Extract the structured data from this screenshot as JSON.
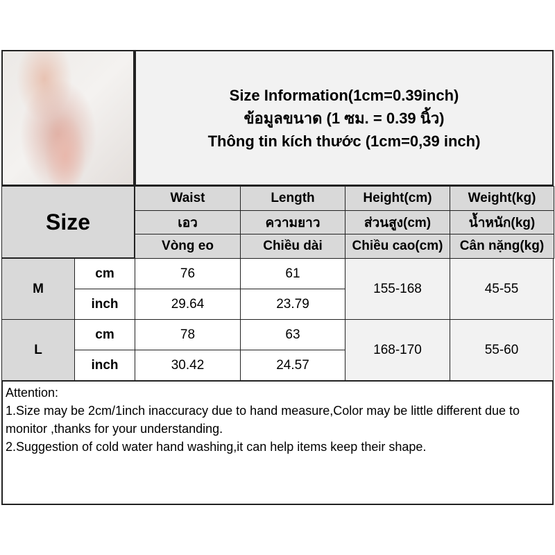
{
  "product_photo": {
    "alt_icon": "product-photo"
  },
  "title": {
    "line1": "Size Information(1cm=0.39inch)",
    "line2": "ข้อมูลขนาด (1 ซม. = 0.39 นิ้ว)",
    "line3": "Thông tin kích thước (1cm=0,39 inch)"
  },
  "table": {
    "size_label": "Size",
    "headers": [
      [
        "Waist",
        "Length",
        "Height(cm)",
        "Weight(kg)"
      ],
      [
        "เอว",
        "ความยาว",
        "ส่วนสูง(cm)",
        "น้ำหนัก(kg)"
      ],
      [
        "Vòng eo",
        "Chiều dài",
        "Chiều cao(cm)",
        "Cân nặng(kg)"
      ]
    ],
    "sizes": [
      {
        "size": "M",
        "cm_label": "cm",
        "inch_label": "inch",
        "waist_cm": "76",
        "length_cm": "61",
        "waist_inch": "29.64",
        "length_inch": "23.79",
        "height": "155-168",
        "weight": "45-55"
      },
      {
        "size": "L",
        "cm_label": "cm",
        "inch_label": "inch",
        "waist_cm": "78",
        "length_cm": "63",
        "waist_inch": "30.42",
        "length_inch": "24.57",
        "height": "168-170",
        "weight": "55-60"
      }
    ]
  },
  "attention": {
    "heading": "Attention:",
    "note1": "1.Size may be 2cm/1inch inaccuracy due to hand measure,Color may be little different due to monitor ,thanks for your understanding.",
    "note2": "2.Suggestion of cold water hand washing,it can help items keep their shape."
  }
}
